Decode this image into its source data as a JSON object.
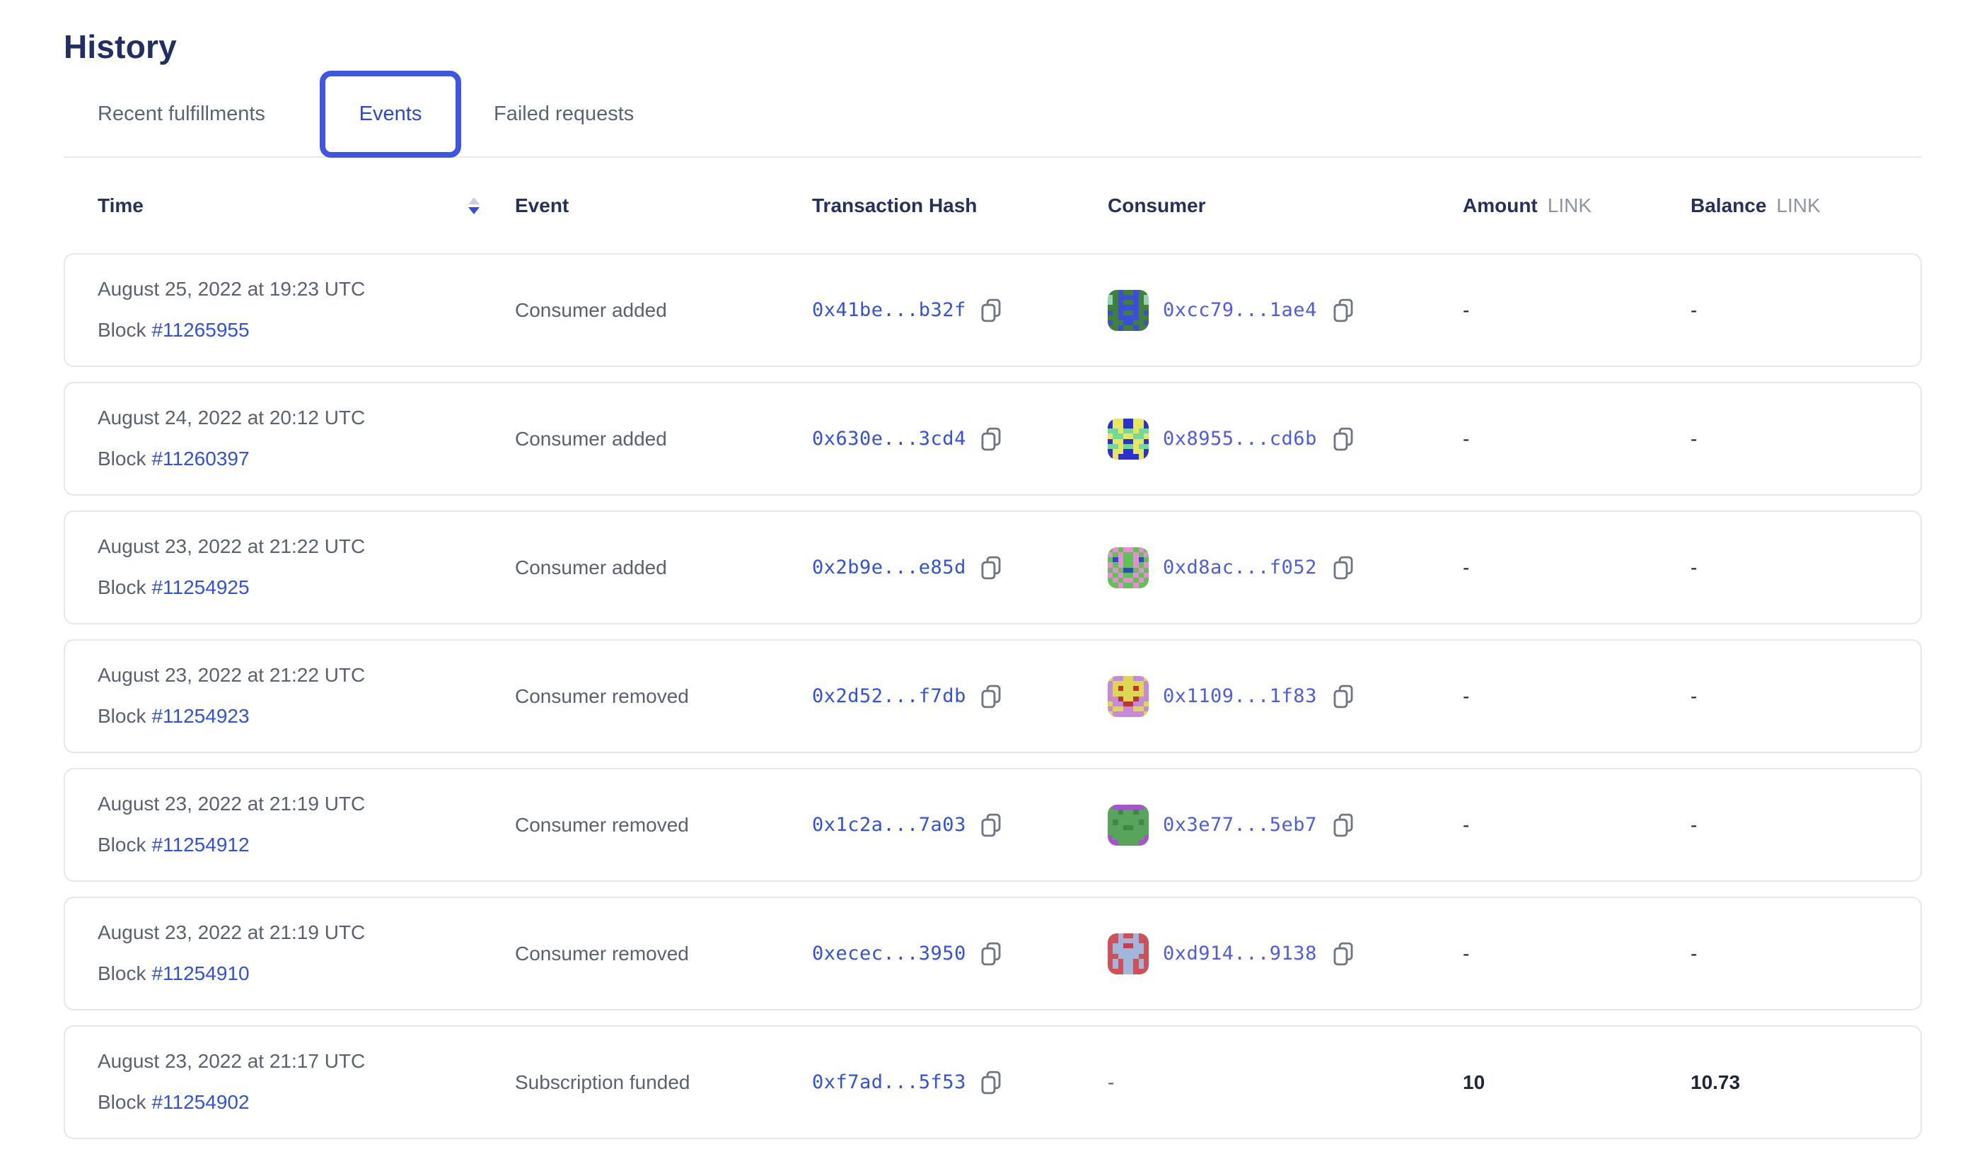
{
  "page": {
    "title": "History"
  },
  "tabs": {
    "items": [
      {
        "label": "Recent fulfillments",
        "active": false
      },
      {
        "label": "Events",
        "active": true
      },
      {
        "label": "Failed requests",
        "active": false
      }
    ]
  },
  "table": {
    "headers": {
      "time": "Time",
      "event": "Event",
      "transaction_hash": "Transaction Hash",
      "consumer": "Consumer",
      "amount": "Amount",
      "balance": "Balance",
      "link_unit": "LINK"
    },
    "sort": {
      "column": "time",
      "direction": "desc"
    },
    "rows": [
      {
        "date": "August 25, 2022 at 19:23 UTC",
        "block_label": "Block",
        "block_number": "#11265955",
        "event": "Consumer added",
        "tx_hash": "0x41be...b32f",
        "consumer_address": "0xcc79...1ae4",
        "amount": "-",
        "balance": "-",
        "avatar": {
          "palette": [
            "#41803c",
            "#3b4ed8",
            "#93d3b2"
          ],
          "grid": [
            "00100100",
            "20111102",
            "20100102",
            "00111100",
            "10100101",
            "00111100",
            "10011001",
            "00100100"
          ]
        }
      },
      {
        "date": "August 24, 2022 at 20:12 UTC",
        "block_label": "Block",
        "block_number": "#11260397",
        "event": "Consumer added",
        "tx_hash": "0x630e...3cd4",
        "consumer_address": "0x8955...cd6b",
        "amount": "-",
        "balance": "-",
        "avatar": {
          "palette": [
            "#2b2fd4",
            "#e9e55e",
            "#74d79b"
          ],
          "grid": [
            "01100110",
            "01100110",
            "22122122",
            "12211221",
            "01100110",
            "22122122",
            "01100110",
            "01000010"
          ]
        }
      },
      {
        "date": "August 23, 2022 at 21:22 UTC",
        "block_label": "Block",
        "block_number": "#11254925",
        "event": "Consumer added",
        "tx_hash": "0x2b9e...e85d",
        "consumer_address": "0xd8ac...f052",
        "amount": "-",
        "balance": "-",
        "avatar": {
          "palette": [
            "#5fc156",
            "#e78ed2",
            "#3049c8"
          ],
          "grid": [
            "01011010",
            "10100101",
            "02100120",
            "10100101",
            "01022010",
            "10100101",
            "01011010",
            "00100100"
          ]
        }
      },
      {
        "date": "August 23, 2022 at 21:22 UTC",
        "block_label": "Block",
        "block_number": "#11254923",
        "event": "Consumer removed",
        "tx_hash": "0x2d52...f7db",
        "consumer_address": "0x1109...1f83",
        "amount": "-",
        "balance": "-",
        "avatar": {
          "palette": [
            "#c78ad8",
            "#ddd851",
            "#b8382c"
          ],
          "grid": [
            "10011001",
            "01111110",
            "01211210",
            "01111110",
            "00211200",
            "10022001",
            "01100110",
            "10000001"
          ]
        }
      },
      {
        "date": "August 23, 2022 at 21:19 UTC",
        "block_label": "Block",
        "block_number": "#11254912",
        "event": "Consumer removed",
        "tx_hash": "0x1c2a...7a03",
        "consumer_address": "0x3e77...5eb7",
        "amount": "-",
        "balance": "-",
        "avatar": {
          "palette": [
            "#57a45b",
            "#a554cc",
            "#448549"
          ],
          "grid": [
            "01111110",
            "00200200",
            "00000000",
            "02000020",
            "00022000",
            "00000000",
            "10000001",
            "11000011"
          ]
        }
      },
      {
        "date": "August 23, 2022 at 21:19 UTC",
        "block_label": "Block",
        "block_number": "#11254910",
        "event": "Consumer removed",
        "tx_hash": "0xecec...3950",
        "consumer_address": "0xd914...9138",
        "amount": "-",
        "balance": "-",
        "avatar": {
          "palette": [
            "#d05057",
            "#a2b5da",
            "#c24049"
          ],
          "grid": [
            "00100100",
            "00111100",
            "01122110",
            "01111110",
            "00111100",
            "01011010",
            "01011010",
            "00011000"
          ]
        }
      },
      {
        "date": "August 23, 2022 at 21:17 UTC",
        "block_label": "Block",
        "block_number": "#11254902",
        "event": "Subscription funded",
        "tx_hash": "0xf7ad...5f53",
        "consumer_address": "-",
        "amount": "10",
        "balance": "10.73",
        "avatar": null
      }
    ]
  },
  "colors": {
    "accent_blue": "#3350e4",
    "active_tab_border": "#3d56e3",
    "heading_navy": "#222f67",
    "text_gray": "#5a626f",
    "link_unit_gray": "#8d95a3",
    "card_border": "#e4e7eb",
    "value_dark": "#1e2738"
  }
}
